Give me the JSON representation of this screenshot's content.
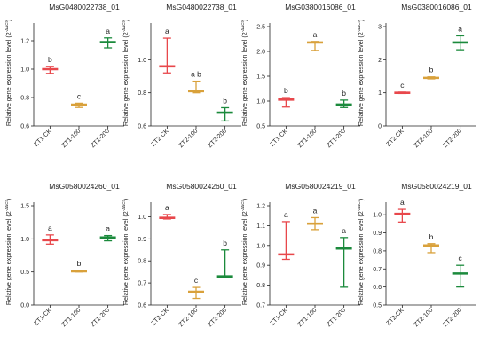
{
  "colors": {
    "ck": "#e8474b",
    "t100": "#d9a13b",
    "t200": "#1b8a3c",
    "axis": "#222222"
  },
  "ylabel_text": "Relative gene expression level (2",
  "ylabel_sup": "-ΔΔCt",
  "ylabel_close": ")",
  "chart_data": [
    {
      "type": "scatter",
      "title": "MsG0480022738_01",
      "categories": [
        "ZT1-CK",
        "ZT1-100",
        "ZT1-200"
      ],
      "ylim": [
        0.6,
        1.3
      ],
      "yticks": [
        "0.6",
        "0.8",
        "1.0",
        "1.2"
      ],
      "tick_values": [
        0.6,
        0.8,
        1.0,
        1.2
      ],
      "means": [
        1.0,
        0.75,
        1.19
      ],
      "lows": [
        0.97,
        0.73,
        1.15
      ],
      "highs": [
        1.02,
        0.76,
        1.22
      ],
      "letters": [
        "b",
        "c",
        "a"
      ]
    },
    {
      "type": "scatter",
      "title": "MsG0480022738_01",
      "categories": [
        "ZT2-CK",
        "ZT2-100",
        "ZT2-200"
      ],
      "ylim": [
        0.6,
        1.2
      ],
      "yticks": [
        "0.6",
        "0.8",
        "1.0"
      ],
      "tick_values": [
        0.6,
        0.8,
        1.0
      ],
      "means": [
        0.96,
        0.81,
        0.68
      ],
      "lows": [
        0.92,
        0.8,
        0.63
      ],
      "highs": [
        1.13,
        0.87,
        0.71
      ],
      "letters": [
        "a",
        "a b",
        "b"
      ]
    },
    {
      "type": "scatter",
      "title": "MsG0380016086_01",
      "categories": [
        "ZT1-CK",
        "ZT1-100",
        "ZT1-200"
      ],
      "ylim": [
        0.5,
        2.5
      ],
      "yticks": [
        "0.5",
        "1.0",
        "1.5",
        "2.0",
        "2.5"
      ],
      "tick_values": [
        0.5,
        1.0,
        1.5,
        2.0,
        2.5
      ],
      "means": [
        1.03,
        2.18,
        0.93
      ],
      "lows": [
        0.88,
        2.02,
        0.87
      ],
      "highs": [
        1.07,
        2.2,
        1.02
      ],
      "letters": [
        "b",
        "a",
        "b"
      ]
    },
    {
      "type": "scatter",
      "title": "MsG0380016086_01",
      "categories": [
        "ZT2-CK",
        "ZT2-100",
        "ZT2-200"
      ],
      "ylim": [
        0,
        3
      ],
      "yticks": [
        "0",
        "1",
        "2",
        "3"
      ],
      "tick_values": [
        0,
        1,
        2,
        3
      ],
      "means": [
        1.0,
        1.45,
        2.52
      ],
      "lows": [
        0.98,
        1.42,
        2.3
      ],
      "highs": [
        1.02,
        1.48,
        2.72
      ],
      "letters": [
        "c",
        "b",
        "a"
      ]
    },
    {
      "type": "scatter",
      "title": "MsG0580024260_01",
      "categories": [
        "ZT1-CK",
        "ZT1-100",
        "ZT1-200"
      ],
      "ylim": [
        0,
        1.5
      ],
      "yticks": [
        "0.0",
        "0.5",
        "1.0",
        "1.5"
      ],
      "tick_values": [
        0,
        0.5,
        1.0,
        1.5
      ],
      "means": [
        0.98,
        0.51,
        1.02
      ],
      "lows": [
        0.92,
        0.5,
        0.97
      ],
      "highs": [
        1.06,
        0.52,
        1.05
      ],
      "letters": [
        "a",
        "b",
        "a"
      ]
    },
    {
      "type": "scatter",
      "title": "MsG0580024260_01",
      "categories": [
        "ZT2-CK",
        "ZT2-100",
        "ZT2-200"
      ],
      "ylim": [
        0.6,
        1.05
      ],
      "yticks": [
        "0.6",
        "0.7",
        "0.8",
        "0.9",
        "1.0"
      ],
      "tick_values": [
        0.6,
        0.7,
        0.8,
        0.9,
        1.0
      ],
      "means": [
        0.995,
        0.66,
        0.73
      ],
      "lows": [
        0.99,
        0.63,
        0.73
      ],
      "highs": [
        1.01,
        0.68,
        0.85
      ],
      "letters": [
        "a",
        "c",
        "b"
      ]
    },
    {
      "type": "scatter",
      "title": "MsG0580024219_01",
      "categories": [
        "ZT1-CK",
        "ZT1-100",
        "ZT1-200"
      ],
      "ylim": [
        0.7,
        1.2
      ],
      "yticks": [
        "0.7",
        "0.8",
        "0.9",
        "1.0",
        "1.1",
        "1.2"
      ],
      "tick_values": [
        0.7,
        0.8,
        0.9,
        1.0,
        1.1,
        1.2
      ],
      "means": [
        0.955,
        1.11,
        0.985
      ],
      "lows": [
        0.93,
        1.08,
        0.79
      ],
      "highs": [
        1.12,
        1.14,
        1.04
      ],
      "letters": [
        "a",
        "a",
        "a"
      ]
    },
    {
      "type": "scatter",
      "title": "MsG0580024219_01",
      "categories": [
        "ZT2-CK",
        "ZT2-100",
        "ZT2-200"
      ],
      "ylim": [
        0.5,
        1.05
      ],
      "yticks": [
        "0.5",
        "0.6",
        "0.7",
        "0.8",
        "0.9",
        "1.0"
      ],
      "tick_values": [
        0.5,
        0.6,
        0.7,
        0.8,
        0.9,
        1.0
      ],
      "means": [
        1.005,
        0.83,
        0.675
      ],
      "lows": [
        0.96,
        0.79,
        0.6
      ],
      "highs": [
        1.03,
        0.84,
        0.72
      ],
      "letters": [
        "a",
        "b",
        "c"
      ]
    }
  ]
}
